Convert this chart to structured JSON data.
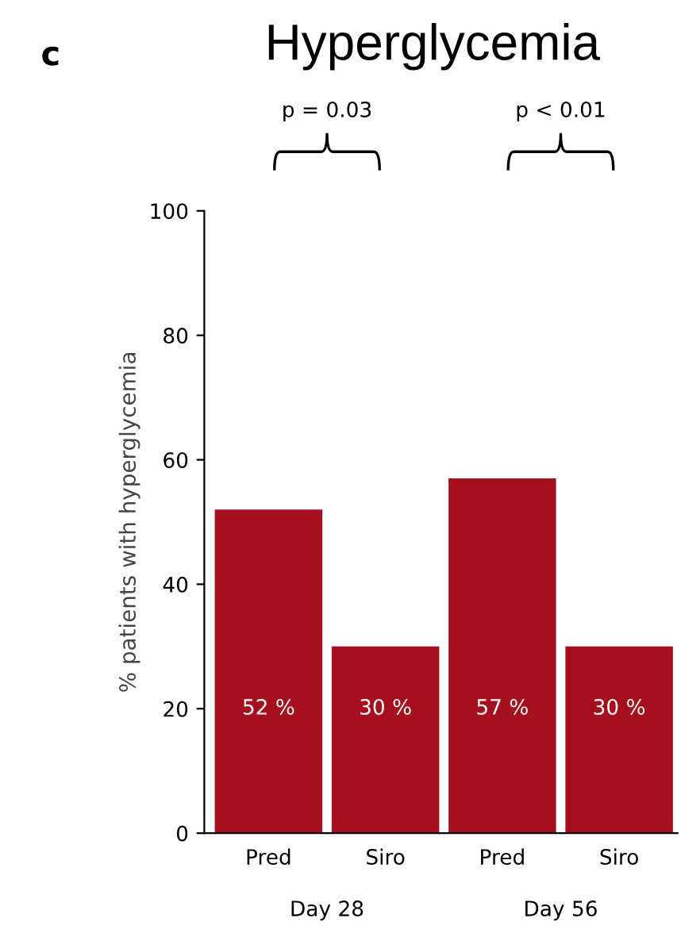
{
  "chart_data": {
    "type": "bar",
    "title": "Hyperglycemia",
    "ylabel": "% patients with hyperglycemia",
    "categories": [
      "Pred",
      "Siro",
      "Pred",
      "Siro"
    ],
    "values": [
      52,
      30,
      57,
      30
    ],
    "color": "#a50f1e",
    "value_labels": [
      "52 %",
      "30 %",
      "57 %",
      "30 %"
    ],
    "ylim": [
      0,
      100
    ],
    "yticks": [
      0,
      20,
      40,
      60,
      80,
      100
    ],
    "grid": false,
    "annotations": [
      "c",
      "p = 0.03",
      "p < 0.01",
      "Day 28",
      "Day 56"
    ]
  }
}
